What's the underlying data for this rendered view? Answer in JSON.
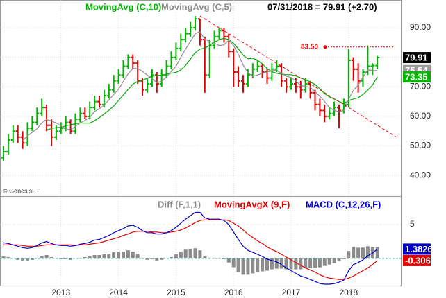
{
  "chart_data": [
    {
      "type": "ohlc",
      "ohlc": {
        "name": "07/31/2018 = 79.91 (+2.70)",
        "up_color": "#00b400",
        "down_color": "#e00000",
        "open": [
          46,
          48,
          52,
          55,
          53,
          51,
          56,
          58,
          61,
          63,
          57,
          53,
          55,
          56,
          58,
          55,
          59,
          61,
          60,
          63,
          65,
          64,
          67,
          69,
          72,
          74,
          77,
          80,
          78,
          72,
          69,
          71,
          74,
          71,
          74,
          77,
          80,
          83,
          86,
          88,
          90,
          93,
          86,
          74,
          84,
          87,
          89,
          87,
          82,
          75,
          72,
          71,
          74,
          76,
          77,
          75,
          73,
          76,
          77,
          72,
          70,
          71,
          70,
          69,
          71,
          68,
          64,
          62,
          60,
          61,
          63,
          62,
          64,
          79,
          76,
          72,
          75,
          77,
          77.21
        ],
        "high": [
          50,
          54,
          57,
          57,
          55,
          58,
          60,
          63,
          66,
          64,
          59,
          57,
          58,
          60,
          59,
          61,
          63,
          63,
          65,
          67,
          67,
          69,
          71,
          74,
          76,
          79,
          81,
          81,
          79,
          73,
          73,
          76,
          75,
          76,
          79,
          82,
          85,
          88,
          90,
          92,
          94,
          93,
          87,
          86,
          89,
          90,
          90,
          88,
          83,
          77,
          74,
          76,
          78,
          79,
          78,
          76,
          78,
          79,
          78,
          73,
          73,
          73,
          72,
          73,
          72,
          69,
          66,
          64,
          63,
          65,
          64,
          66,
          83,
          80,
          78,
          76,
          84,
          78,
          80.5
        ],
        "low": [
          45,
          47,
          51,
          51,
          49,
          50,
          55,
          57,
          60,
          55,
          50,
          52,
          54,
          55,
          54,
          54,
          58,
          59,
          59,
          62,
          63,
          63,
          66,
          68,
          71,
          73,
          76,
          76,
          71,
          67,
          68,
          70,
          68,
          70,
          73,
          76,
          79,
          82,
          85,
          87,
          89,
          84,
          68,
          73,
          83,
          86,
          85,
          80,
          70,
          70,
          68,
          70,
          73,
          75,
          73,
          71,
          72,
          75,
          70,
          68,
          69,
          68,
          66,
          68,
          66,
          62,
          60,
          58,
          59,
          60,
          56,
          61,
          63,
          72,
          68,
          70,
          74,
          74,
          76
        ],
        "close": [
          48,
          52,
          55,
          53,
          51,
          56,
          58,
          61,
          63,
          57,
          53,
          55,
          56,
          58,
          55,
          59,
          61,
          60,
          63,
          65,
          64,
          67,
          69,
          72,
          74,
          77,
          80,
          78,
          72,
          69,
          71,
          74,
          71,
          74,
          77,
          80,
          83,
          86,
          88,
          90,
          93,
          86,
          74,
          84,
          87,
          89,
          87,
          82,
          75,
          72,
          71,
          74,
          76,
          77,
          75,
          73,
          76,
          77,
          72,
          70,
          71,
          70,
          69,
          71,
          68,
          64,
          62,
          60,
          61,
          63,
          62,
          64,
          79,
          76,
          72,
          75,
          77,
          77.21,
          79.91
        ]
      },
      "series": [
        {
          "name": "MovingAvg (C,10)",
          "color": "#00a800",
          "label_bg": "#00b400",
          "values": [
            null,
            null,
            null,
            null,
            null,
            null,
            null,
            null,
            null,
            55.4,
            55.9,
            56.2,
            56.3,
            56.8,
            57.2,
            57.5,
            57.8,
            57.7,
            57.7,
            58.5,
            59.6,
            60.8,
            62.1,
            63.5,
            65.4,
            67.2,
            69.1,
            70.9,
            71.8,
            72.2,
            72.9,
            73.6,
            73.8,
            74,
            74.3,
            74.6,
            74.9,
            75.7,
            77.3,
            79.4,
            81.6,
            82.8,
            83.1,
            84.1,
            85.1,
            86,
            86.4,
            86,
            84.7,
            82.9,
            80.7,
            79.5,
            79.7,
            79,
            77.8,
            76.2,
            75.1,
            74.6,
            74.3,
            74.1,
            74.1,
            73.7,
            73,
            72.4,
            71.7,
            70.8,
            69.4,
            67.7,
            66.6,
            65.9,
            65,
            64.4,
            65.4,
            65.9,
            66.3,
            67.4,
            68.9,
            70.6,
            73.35
          ]
        },
        {
          "name": "MovingAvg (C,5)",
          "color": "#8c8c8c",
          "label_bg": "#9a9a9a",
          "values": [
            null,
            null,
            null,
            null,
            51.8,
            53.4,
            54.6,
            55.8,
            57.8,
            59,
            58.4,
            57.8,
            56.8,
            55.8,
            55.4,
            56.6,
            57.8,
            58.6,
            59.6,
            61.6,
            62.6,
            63.8,
            65.6,
            67.4,
            69.2,
            71.8,
            74.4,
            76.2,
            76.2,
            75.2,
            74,
            72.8,
            71.4,
            71.8,
            73.4,
            75.2,
            77,
            80,
            82.8,
            85.4,
            88,
            88.6,
            86.2,
            85.4,
            84.8,
            84,
            84.2,
            85.8,
            84,
            81,
            77.4,
            74.8,
            73.6,
            74,
            74.6,
            75,
            75.4,
            75.6,
            74.6,
            73.6,
            73.2,
            72,
            70.4,
            70.2,
            69.8,
            68.4,
            66.8,
            65,
            63,
            62,
            61.6,
            62,
            65.8,
            68.8,
            70.6,
            73.2,
            75.8,
            75.44,
            75.54
          ]
        }
      ],
      "resistance": {
        "value": 83.5,
        "label": "83.50",
        "color": "#e00000"
      },
      "trendline": {
        "x": [
          41,
          82
        ],
        "y": [
          94,
          53
        ],
        "color": "#e00000"
      },
      "credit": "© GenesisFT",
      "ylim": [
        33,
        99.4
      ],
      "yticks": [
        {
          "value": 40,
          "label": "40.00"
        },
        {
          "value": 50,
          "label": "50.00"
        },
        {
          "value": 60,
          "label": "60.00"
        },
        {
          "value": 70,
          "label": "70.00"
        },
        {
          "value": 80,
          "label": "80.00"
        },
        {
          "value": 90,
          "label": "90.00"
        }
      ],
      "grid": true
    },
    {
      "type": "macd",
      "series": [
        {
          "name": "Diff (F,1,1)",
          "color": "#8c8c8c",
          "kind": "hist",
          "values": [
            0.3,
            0.2,
            0,
            -0.2,
            -0.3,
            -0.3,
            -0.2,
            0.1,
            0.4,
            0.5,
            0.2,
            0,
            -0.1,
            -0.1,
            -0.2,
            0,
            0.1,
            0.2,
            0.3,
            0.5,
            0.5,
            0.6,
            0.7,
            0.9,
            1.0,
            1.0,
            1.2,
            1.0,
            0.6,
            0.1,
            -0.2,
            -0.1,
            -0.3,
            -0.2,
            0,
            0.2,
            0.6,
            1.0,
            1.3,
            1.4,
            1.5,
            1.2,
            0.3,
            0.1,
            0.1,
            0.1,
            -0.1,
            -0.6,
            -1.3,
            -2.0,
            -2.4,
            -2.4,
            -2.2,
            -2.0,
            -1.9,
            -1.8,
            -1.6,
            -1.5,
            -1.5,
            -1.6,
            -1.6,
            -1.6,
            -1.6,
            -1.4,
            -1.4,
            -1.4,
            -1.3,
            -1.1,
            -0.9,
            -0.7,
            -0.4,
            -0.1,
            1.1,
            1.7,
            1.6,
            1.6,
            1.8,
            1.7,
            1.7
          ]
        },
        {
          "name": "MovingAvgX (9,F)",
          "color": "#e00000",
          "kind": "line",
          "last_label": "-0.3060",
          "values": [
            2.0,
            2.0,
            2.0,
            2.0,
            1.9,
            1.8,
            1.8,
            1.8,
            1.9,
            2.0,
            2.0,
            2.0,
            2.0,
            2.0,
            2.0,
            1.9,
            2.0,
            2.0,
            2.1,
            2.2,
            2.3,
            2.5,
            2.7,
            2.9,
            3.1,
            3.4,
            3.6,
            3.9,
            4.0,
            4.0,
            4.0,
            3.9,
            3.9,
            3.8,
            3.8,
            3.9,
            4.0,
            4.2,
            4.5,
            4.9,
            5.3,
            5.6,
            5.7,
            5.7,
            5.7,
            5.7,
            5.7,
            5.6,
            5.2,
            4.8,
            4.2,
            3.6,
            3.1,
            2.6,
            2.2,
            1.7,
            1.3,
            1.0,
            0.6,
            0.2,
            -0.2,
            -0.6,
            -1.0,
            -1.4,
            -1.7,
            -2.0,
            -2.4,
            -2.7,
            -2.9,
            -3.0,
            -3.1,
            -3.1,
            -2.9,
            -2.6,
            -2.2,
            -1.8,
            -1.4,
            -0.9,
            -0.306
          ]
        },
        {
          "name": "MACD (C,12,26,F)",
          "color": "#0000c8",
          "kind": "line",
          "values": [
            2.3,
            2.2,
            2.0,
            1.8,
            1.6,
            1.5,
            1.6,
            1.9,
            2.3,
            2.5,
            2.2,
            2.0,
            1.9,
            1.9,
            1.8,
            1.9,
            2.1,
            2.2,
            2.4,
            2.7,
            2.8,
            3.1,
            3.4,
            3.8,
            4.1,
            4.4,
            4.8,
            4.9,
            4.6,
            4.1,
            3.8,
            3.8,
            3.6,
            3.6,
            3.8,
            4.1,
            4.6,
            5.2,
            5.8,
            6.3,
            6.8,
            6.8,
            6.0,
            5.8,
            5.8,
            5.8,
            5.6,
            5.0,
            3.9,
            2.8,
            1.8,
            1.2,
            0.9,
            0.6,
            0.3,
            -0.1,
            -0.3,
            -0.5,
            -0.9,
            -1.4,
            -1.8,
            -2.2,
            -2.6,
            -2.8,
            -3.1,
            -3.4,
            -3.7,
            -3.8,
            -3.8,
            -3.7,
            -3.5,
            -3.2,
            -1.8,
            -0.9,
            -0.6,
            -0.2,
            0.4,
            0.8,
            1.3826
          ]
        }
      ],
      "ylim": [
        -4,
        9.2
      ],
      "yticks": [
        5
      ],
      "zero_color": "#3a9a9a",
      "xticks": [
        {
          "value": 12,
          "label": "2013"
        },
        {
          "value": 24,
          "label": "2014"
        },
        {
          "value": 36,
          "label": "2015"
        },
        {
          "value": 48,
          "label": "2016"
        },
        {
          "value": 60,
          "label": "2017"
        },
        {
          "value": 72,
          "label": "2018"
        }
      ],
      "grid": true
    }
  ]
}
